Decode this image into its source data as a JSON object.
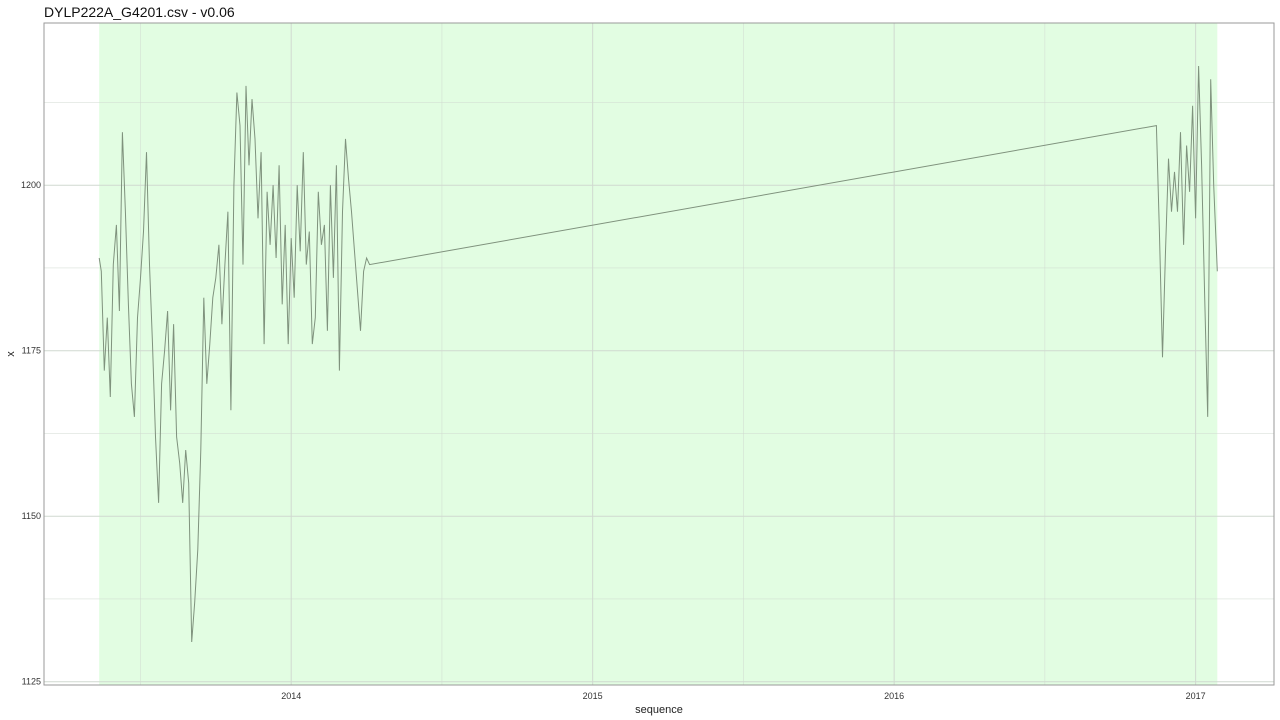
{
  "chart_data": {
    "type": "line",
    "title": "DYLP222A_G4201.csv - v0.06",
    "xlabel": "sequence",
    "ylabel": "x",
    "xlim": [
      2013.18,
      2017.26
    ],
    "ylim": [
      1124.5,
      1224.5
    ],
    "x_ticks": [
      "2014",
      "2015",
      "2016",
      "2017"
    ],
    "y_ticks": [
      "1125",
      "1150",
      "1175",
      "1200"
    ],
    "grid": true,
    "background_color": "#ffffff",
    "band_color": "#e2fde2",
    "band_x": [
      2013.363,
      2017.072
    ],
    "grid_color": "#d0d9d0",
    "line_color": "#7f927d",
    "series": [
      {
        "x": [
          2013.363,
          2013.37,
          2013.38,
          2013.39,
          2013.4,
          2013.41,
          2013.42,
          2013.43,
          2013.44,
          2013.45,
          2013.46,
          2013.47,
          2013.48,
          2013.49,
          2013.5,
          2013.51,
          2013.52,
          2013.53,
          2013.54,
          2013.55,
          2013.56,
          2013.57,
          2013.58,
          2013.59,
          2013.6,
          2013.61,
          2013.62,
          2013.63,
          2013.64,
          2013.65,
          2013.66,
          2013.67,
          2013.68,
          2013.69,
          2013.7,
          2013.71,
          2013.72,
          2013.73,
          2013.74,
          2013.75,
          2013.76,
          2013.77,
          2013.78,
          2013.79,
          2013.8,
          2013.81,
          2013.82,
          2013.83,
          2013.84,
          2013.85,
          2013.86,
          2013.87,
          2013.88,
          2013.89,
          2013.9,
          2013.91,
          2013.92,
          2013.93,
          2013.94,
          2013.95,
          2013.96,
          2013.97,
          2013.98,
          2013.99,
          2014.0,
          2014.01,
          2014.02,
          2014.03,
          2014.04,
          2014.05,
          2014.06,
          2014.07,
          2014.08,
          2014.09,
          2014.1,
          2014.11,
          2014.12,
          2014.13,
          2014.14,
          2014.15,
          2014.16,
          2014.17,
          2014.18,
          2014.19,
          2014.2,
          2014.21,
          2014.22,
          2014.23,
          2014.24,
          2014.25,
          2014.26,
          2016.87,
          2016.88,
          2016.89,
          2016.9,
          2016.91,
          2016.92,
          2016.93,
          2016.94,
          2016.95,
          2016.96,
          2016.97,
          2016.98,
          2016.99,
          2017.0,
          2017.01,
          2017.02,
          2017.03,
          2017.04,
          2017.05,
          2017.06,
          2017.072
        ],
        "y": [
          1189,
          1187,
          1172,
          1180,
          1168,
          1188,
          1194,
          1181,
          1208,
          1196,
          1182,
          1170,
          1165,
          1180,
          1186,
          1193,
          1205,
          1188,
          1176,
          1162,
          1152,
          1170,
          1175,
          1181,
          1166,
          1179,
          1162,
          1158,
          1152,
          1160,
          1155,
          1131,
          1137,
          1145,
          1160,
          1183,
          1170,
          1176,
          1183,
          1186,
          1191,
          1179,
          1188,
          1196,
          1166,
          1200,
          1214,
          1209,
          1188,
          1215,
          1203,
          1213,
          1207,
          1195,
          1205,
          1176,
          1199,
          1191,
          1200,
          1189,
          1203,
          1182,
          1194,
          1176,
          1192,
          1183,
          1200,
          1190,
          1205,
          1188,
          1193,
          1176,
          1180,
          1199,
          1191,
          1194,
          1178,
          1200,
          1186,
          1203,
          1172,
          1196,
          1207,
          1201,
          1196,
          1190,
          1184,
          1178,
          1187,
          1189,
          1188,
          1209,
          1193,
          1174,
          1190,
          1204,
          1196,
          1202,
          1196,
          1208,
          1191,
          1206,
          1199,
          1212,
          1195,
          1218,
          1203,
          1183,
          1165,
          1216,
          1200,
          1187
        ]
      }
    ]
  }
}
